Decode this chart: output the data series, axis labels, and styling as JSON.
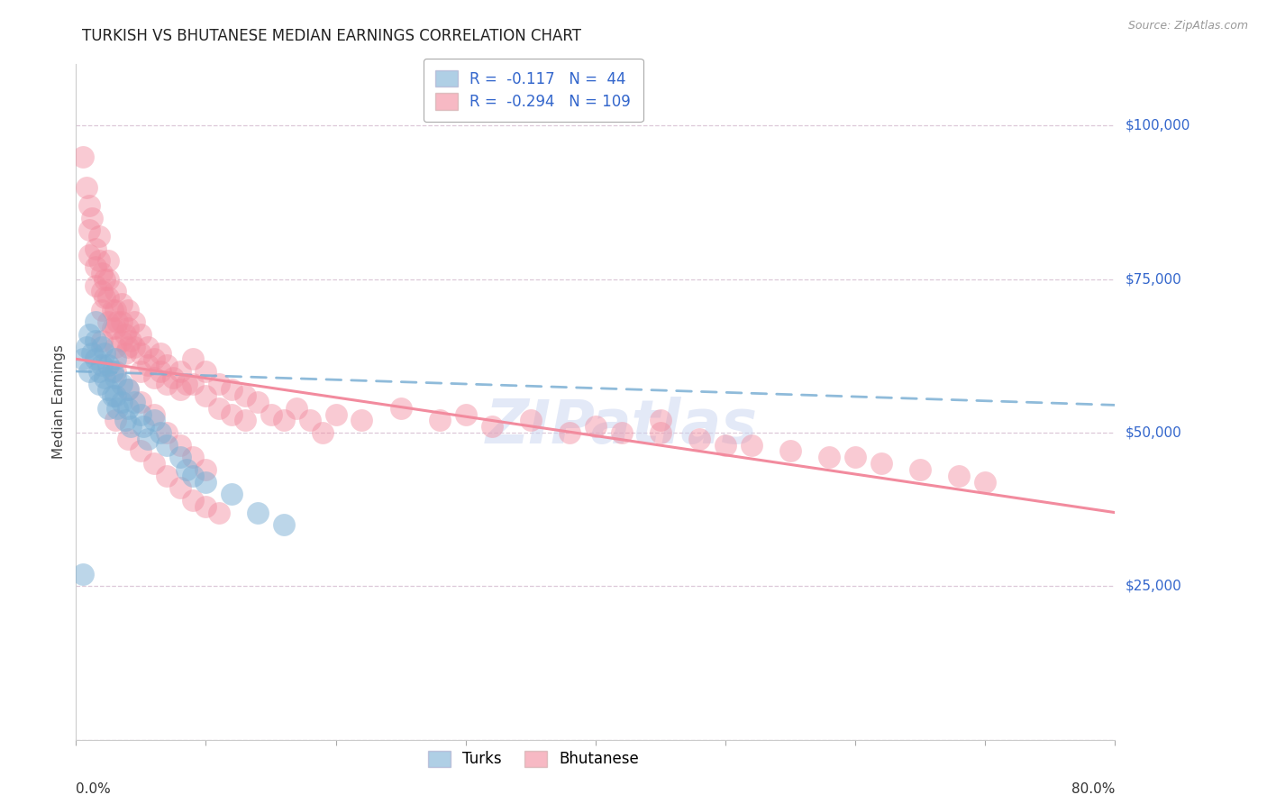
{
  "title": "TURKISH VS BHUTANESE MEDIAN EARNINGS CORRELATION CHART",
  "source": "Source: ZipAtlas.com",
  "ylabel": "Median Earnings",
  "yticks": [
    0,
    25000,
    50000,
    75000,
    100000
  ],
  "ytick_labels": [
    "",
    "$25,000",
    "$50,000",
    "$75,000",
    "$100,000"
  ],
  "ylim": [
    0,
    110000
  ],
  "xlim": [
    0.0,
    0.8
  ],
  "turks_R": -0.117,
  "turks_N": 44,
  "bhutanese_R": -0.294,
  "bhutanese_N": 109,
  "turks_color": "#7bafd4",
  "bhutanese_color": "#f28b9e",
  "turks_scatter_x": [
    0.005,
    0.008,
    0.01,
    0.01,
    0.012,
    0.015,
    0.015,
    0.015,
    0.018,
    0.018,
    0.02,
    0.02,
    0.022,
    0.022,
    0.025,
    0.025,
    0.025,
    0.028,
    0.028,
    0.03,
    0.03,
    0.03,
    0.032,
    0.035,
    0.035,
    0.038,
    0.04,
    0.04,
    0.042,
    0.045,
    0.05,
    0.052,
    0.055,
    0.06,
    0.065,
    0.07,
    0.08,
    0.085,
    0.09,
    0.1,
    0.12,
    0.14,
    0.16,
    0.005
  ],
  "turks_scatter_y": [
    62000,
    64000,
    66000,
    60000,
    63000,
    68000,
    65000,
    62000,
    60000,
    58000,
    64000,
    61000,
    63000,
    59000,
    61000,
    57000,
    54000,
    60000,
    56000,
    62000,
    59000,
    56000,
    54000,
    58000,
    55000,
    52000,
    57000,
    54000,
    51000,
    55000,
    53000,
    51000,
    49000,
    52000,
    50000,
    48000,
    46000,
    44000,
    43000,
    42000,
    40000,
    37000,
    35000,
    27000
  ],
  "bhutanese_scatter_x": [
    0.005,
    0.008,
    0.01,
    0.01,
    0.01,
    0.012,
    0.015,
    0.015,
    0.015,
    0.018,
    0.018,
    0.02,
    0.02,
    0.02,
    0.022,
    0.022,
    0.025,
    0.025,
    0.025,
    0.025,
    0.028,
    0.028,
    0.03,
    0.03,
    0.03,
    0.03,
    0.032,
    0.035,
    0.035,
    0.035,
    0.038,
    0.038,
    0.04,
    0.04,
    0.04,
    0.042,
    0.045,
    0.045,
    0.05,
    0.05,
    0.05,
    0.055,
    0.055,
    0.06,
    0.06,
    0.065,
    0.065,
    0.07,
    0.07,
    0.075,
    0.08,
    0.08,
    0.085,
    0.09,
    0.09,
    0.1,
    0.1,
    0.11,
    0.11,
    0.12,
    0.12,
    0.13,
    0.13,
    0.14,
    0.15,
    0.16,
    0.17,
    0.18,
    0.19,
    0.2,
    0.22,
    0.25,
    0.28,
    0.3,
    0.32,
    0.35,
    0.38,
    0.4,
    0.42,
    0.45,
    0.48,
    0.5,
    0.52,
    0.55,
    0.58,
    0.6,
    0.62,
    0.65,
    0.68,
    0.7,
    0.02,
    0.03,
    0.04,
    0.05,
    0.06,
    0.07,
    0.08,
    0.09,
    0.1,
    0.03,
    0.04,
    0.05,
    0.06,
    0.07,
    0.08,
    0.09,
    0.1,
    0.11,
    0.45
  ],
  "bhutanese_scatter_y": [
    95000,
    90000,
    87000,
    83000,
    79000,
    85000,
    80000,
    77000,
    74000,
    82000,
    78000,
    76000,
    73000,
    70000,
    75000,
    72000,
    78000,
    75000,
    72000,
    68000,
    70000,
    67000,
    73000,
    70000,
    67000,
    64000,
    68000,
    71000,
    68000,
    65000,
    66000,
    63000,
    70000,
    67000,
    64000,
    65000,
    68000,
    64000,
    66000,
    63000,
    60000,
    64000,
    61000,
    62000,
    59000,
    63000,
    60000,
    61000,
    58000,
    59000,
    60000,
    57000,
    58000,
    62000,
    58000,
    60000,
    56000,
    58000,
    54000,
    57000,
    53000,
    56000,
    52000,
    55000,
    53000,
    52000,
    54000,
    52000,
    50000,
    53000,
    52000,
    54000,
    52000,
    53000,
    51000,
    52000,
    50000,
    51000,
    50000,
    50000,
    49000,
    48000,
    48000,
    47000,
    46000,
    46000,
    45000,
    44000,
    43000,
    42000,
    65000,
    60000,
    57000,
    55000,
    53000,
    50000,
    48000,
    46000,
    44000,
    52000,
    49000,
    47000,
    45000,
    43000,
    41000,
    39000,
    38000,
    37000,
    52000
  ],
  "turks_line_x": [
    0.0,
    0.8
  ],
  "turks_line_y": [
    60000,
    54500
  ],
  "bhutanese_line_x": [
    0.0,
    0.8
  ],
  "bhutanese_line_y": [
    62000,
    37000
  ],
  "grid_color": "#ddc8d8",
  "watermark": "ZIPatlas",
  "watermark_color": "#c8d4f0",
  "title_fontsize": 12,
  "axis_label_fontsize": 11,
  "tick_label_fontsize": 11,
  "legend_fontsize": 12,
  "right_tick_color": "#3366cc",
  "xtick_label_color": "#333333",
  "background_color": "#ffffff"
}
